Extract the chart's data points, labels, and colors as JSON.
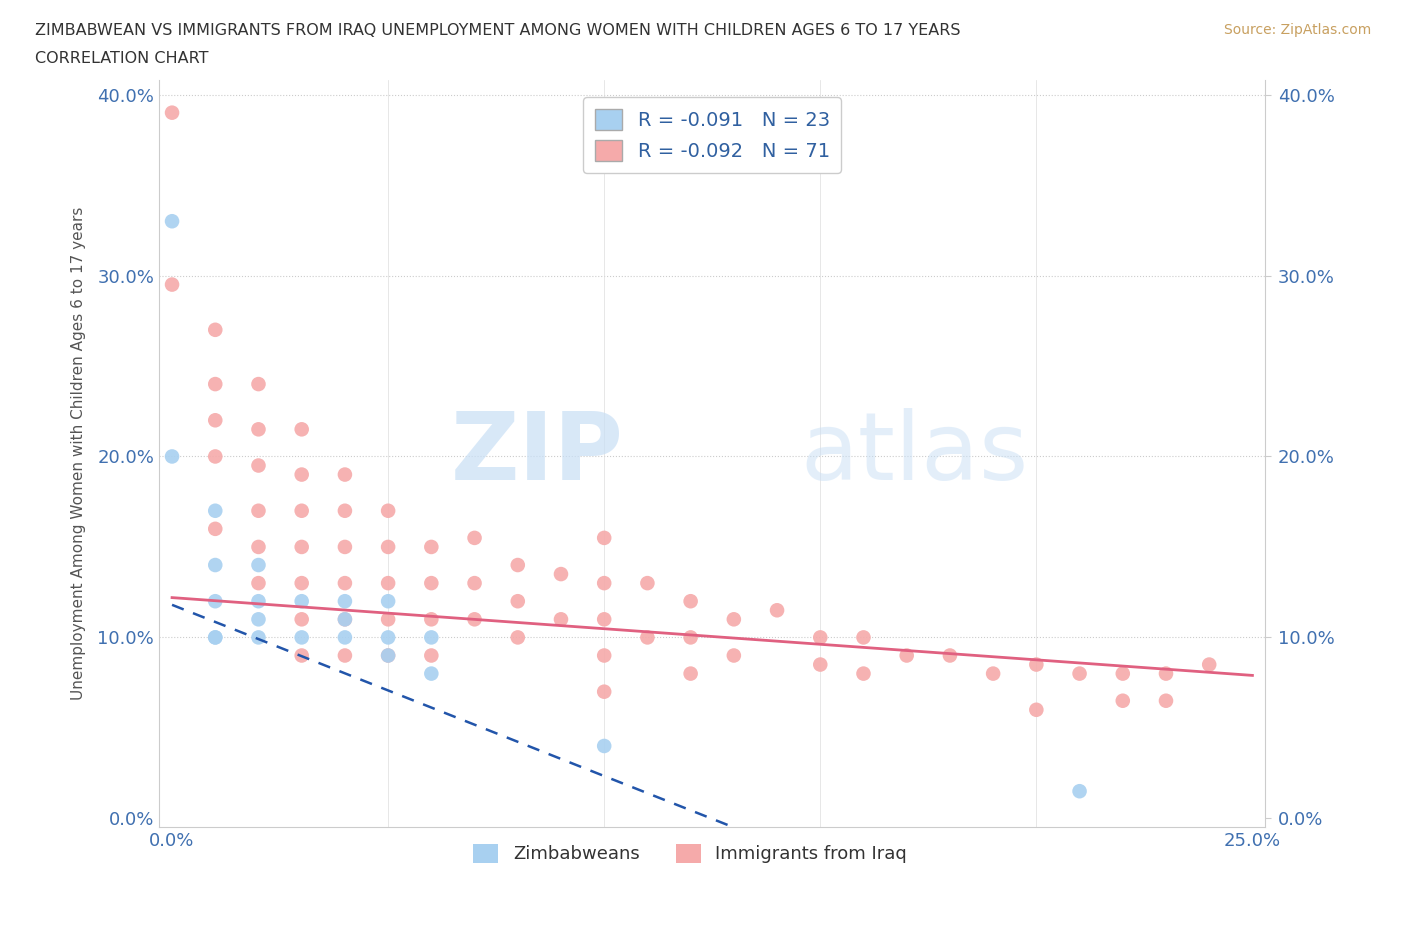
{
  "title_line1": "ZIMBABWEAN VS IMMIGRANTS FROM IRAQ UNEMPLOYMENT AMONG WOMEN WITH CHILDREN AGES 6 TO 17 YEARS",
  "title_line2": "CORRELATION CHART",
  "source": "Source: ZipAtlas.com",
  "ylabel": "Unemployment Among Women with Children Ages 6 to 17 years",
  "xlim": [
    0.0,
    0.25
  ],
  "ylim": [
    0.0,
    0.4
  ],
  "xticks": [
    0.0,
    0.05,
    0.1,
    0.15,
    0.2,
    0.25
  ],
  "yticks": [
    0.0,
    0.1,
    0.2,
    0.3,
    0.4
  ],
  "legend_blue_label": "R = -0.091   N = 23",
  "legend_pink_label": "R = -0.092   N = 71",
  "legend_bottom_blue": "Zimbabweans",
  "legend_bottom_pink": "Immigrants from Iraq",
  "blue_color": "#A8D0F0",
  "pink_color": "#F5AAAA",
  "blue_line_color": "#2255AA",
  "pink_line_color": "#E06080",
  "watermark_zip": "ZIP",
  "watermark_atlas": "atlas",
  "blue_scatter_x": [
    0.0,
    0.0,
    0.01,
    0.01,
    0.01,
    0.01,
    0.01,
    0.02,
    0.02,
    0.02,
    0.02,
    0.03,
    0.03,
    0.04,
    0.04,
    0.04,
    0.05,
    0.05,
    0.05,
    0.06,
    0.06,
    0.1,
    0.21
  ],
  "blue_scatter_y": [
    0.33,
    0.2,
    0.17,
    0.14,
    0.12,
    0.1,
    0.1,
    0.14,
    0.12,
    0.11,
    0.1,
    0.12,
    0.1,
    0.12,
    0.11,
    0.1,
    0.12,
    0.1,
    0.09,
    0.1,
    0.08,
    0.04,
    0.015
  ],
  "pink_scatter_x": [
    0.0,
    0.0,
    0.01,
    0.01,
    0.01,
    0.01,
    0.01,
    0.02,
    0.02,
    0.02,
    0.02,
    0.02,
    0.02,
    0.03,
    0.03,
    0.03,
    0.03,
    0.03,
    0.03,
    0.03,
    0.04,
    0.04,
    0.04,
    0.04,
    0.04,
    0.04,
    0.05,
    0.05,
    0.05,
    0.05,
    0.05,
    0.06,
    0.06,
    0.06,
    0.06,
    0.07,
    0.07,
    0.07,
    0.08,
    0.08,
    0.08,
    0.09,
    0.09,
    0.1,
    0.1,
    0.1,
    0.1,
    0.1,
    0.11,
    0.11,
    0.12,
    0.12,
    0.12,
    0.13,
    0.13,
    0.14,
    0.15,
    0.15,
    0.16,
    0.16,
    0.17,
    0.18,
    0.19,
    0.2,
    0.2,
    0.21,
    0.22,
    0.22,
    0.23,
    0.23,
    0.24
  ],
  "pink_scatter_y": [
    0.39,
    0.295,
    0.27,
    0.24,
    0.22,
    0.2,
    0.16,
    0.24,
    0.215,
    0.195,
    0.17,
    0.15,
    0.13,
    0.215,
    0.19,
    0.17,
    0.15,
    0.13,
    0.11,
    0.09,
    0.19,
    0.17,
    0.15,
    0.13,
    0.11,
    0.09,
    0.17,
    0.15,
    0.13,
    0.11,
    0.09,
    0.15,
    0.13,
    0.11,
    0.09,
    0.155,
    0.13,
    0.11,
    0.14,
    0.12,
    0.1,
    0.135,
    0.11,
    0.155,
    0.13,
    0.11,
    0.09,
    0.07,
    0.13,
    0.1,
    0.12,
    0.1,
    0.08,
    0.11,
    0.09,
    0.115,
    0.1,
    0.085,
    0.1,
    0.08,
    0.09,
    0.09,
    0.08,
    0.085,
    0.06,
    0.08,
    0.08,
    0.065,
    0.08,
    0.065,
    0.085
  ],
  "pink_line_x0": 0.0,
  "pink_line_y0": 0.122,
  "pink_line_x1": 0.25,
  "pink_line_y1": 0.079,
  "blue_line_x0": 0.0,
  "blue_line_y0": 0.118,
  "blue_line_x1": 0.13,
  "blue_line_y1": -0.005
}
